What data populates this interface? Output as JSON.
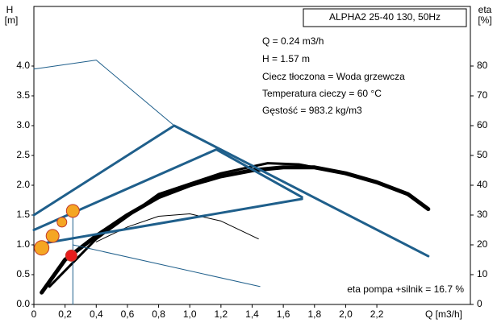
{
  "chart_data": {
    "type": "line",
    "x_label": "Q [m3/h]",
    "y_label": [
      "H",
      "[m]"
    ],
    "y2_label": [
      "eta",
      "[%]"
    ],
    "title": "ALPHA2 25-40 130, 50Hz",
    "info": [
      "Q = 0.24 m3/h",
      "H = 1.57 m",
      "Ciecz tłoczona = Woda grzewcza",
      "Temperatura cieczy = 60 °C",
      "Gęstość = 983.2 kg/m3"
    ],
    "annotation": "eta pompa +silnik = 16.7 %",
    "xlim": [
      0,
      2.8
    ],
    "ylim": [
      0,
      5
    ],
    "y2lim": [
      0,
      100
    ],
    "xticks": [
      0,
      {
        "value": 0.2,
        "label": "0,2"
      },
      {
        "value": 0.4,
        "label": "0,4"
      },
      {
        "value": 0.6,
        "label": "0,6"
      },
      {
        "value": 0.8,
        "label": "0,8"
      },
      {
        "value": 1.0,
        "label": "1,0"
      },
      {
        "value": 1.2,
        "label": "1,2"
      },
      {
        "value": 1.4,
        "label": "1,4"
      },
      {
        "value": 1.6,
        "label": "1,6"
      },
      {
        "value": 1.8,
        "label": "1,8"
      },
      {
        "value": 2.0,
        "label": "2,0"
      },
      {
        "value": 2.2,
        "label": "2,2"
      }
    ],
    "yticks": [
      {
        "value": 0,
        "label": "0.0"
      },
      0.5,
      {
        "value": 1,
        "label": "1.0"
      },
      1.5,
      {
        "value": 2,
        "label": "2.0"
      },
      2.5,
      {
        "value": 3,
        "label": "3.0"
      },
      3.5,
      {
        "value": 4,
        "label": "4.0"
      }
    ],
    "y2ticks": [
      0,
      10,
      20,
      30,
      40,
      50,
      60,
      70,
      80
    ],
    "series": [
      {
        "color": "#000000",
        "width": 5,
        "x": [
          0.05,
          0.2,
          0.4,
          0.6,
          0.8,
          1.0,
          1.2,
          1.4,
          1.6,
          1.8,
          2.0,
          2.2,
          2.4,
          2.53
        ],
        "values": [
          0.2,
          0.75,
          1.15,
          1.5,
          1.8,
          2.0,
          2.15,
          2.25,
          2.3,
          2.3,
          2.2,
          2.05,
          1.85,
          1.6
        ]
      },
      {
        "color": "#000000",
        "width": 3,
        "x": [
          0.1,
          0.4,
          0.8,
          1.2,
          1.5,
          1.7,
          1.8
        ],
        "values": [
          0.3,
          1.1,
          1.85,
          2.2,
          2.37,
          2.35,
          2.3
        ]
      },
      {
        "color": "#000000",
        "width": 1,
        "x": [
          0.4,
          0.6,
          0.8,
          1.0,
          1.2,
          1.44
        ],
        "values": [
          1.05,
          1.3,
          1.48,
          1.52,
          1.4,
          1.1
        ]
      },
      {
        "color": "#1f5f8b",
        "width": 3,
        "x": [
          0,
          0.9,
          2.53
        ],
        "values": [
          1.5,
          3.0,
          0.81
        ]
      },
      {
        "color": "#1f5f8b",
        "width": 3,
        "x": [
          0,
          1.17,
          1.72
        ],
        "values": [
          1.25,
          2.6,
          1.8
        ]
      },
      {
        "color": "#1f5f8b",
        "width": 3,
        "x": [
          0.05,
          1.72
        ],
        "values": [
          1.02,
          1.77
        ]
      },
      {
        "color": "#1f5f8b",
        "width": 1,
        "x": [
          0,
          0.4,
          0.9
        ],
        "values": [
          3.95,
          4.1,
          3.0
        ]
      },
      {
        "color": "#1f5f8b",
        "width": 1,
        "x": [
          0.25,
          1.45
        ],
        "values": [
          1.0,
          0.3
        ]
      },
      {
        "color": "#1f5f8b",
        "width": 1,
        "x": [
          0.25,
          0.25
        ],
        "values": [
          0,
          1.57
        ]
      }
    ],
    "points": [
      {
        "color": "#f5a623",
        "x": 0.05,
        "value": 0.95,
        "size": 9
      },
      {
        "color": "#f5a623",
        "x": 0.12,
        "value": 1.15,
        "size": 8
      },
      {
        "color": "#f5a623",
        "x": 0.18,
        "value": 1.38,
        "size": 6
      },
      {
        "color": "#f5a623",
        "x": 0.25,
        "value": 1.57,
        "size": 8
      },
      {
        "color": "#e81c1c",
        "x": 0.24,
        "value": 0.82,
        "size": 7
      }
    ]
  }
}
